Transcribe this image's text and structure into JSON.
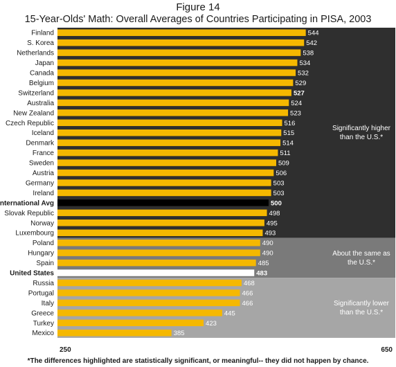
{
  "figure_label": "Figure 14",
  "title": "15-Year-Olds' Math: Overall Averages of Countries Participating in PISA, 2003",
  "footnote": "*The differences highlighted are statistically significant, or meaningful-- they did not happen by chance.",
  "colors": {
    "bar": "#f5b800",
    "highlight_international": "#000000",
    "highlight_us": "#ffffff",
    "panel_higher": "#2f2f2f",
    "panel_same": "#7a7a7a",
    "panel_lower": "#a6a6a6"
  },
  "chart_data": {
    "type": "bar",
    "orientation": "horizontal",
    "xlim": [
      250,
      650
    ],
    "x_ticks": [
      "250",
      "650"
    ],
    "grid": false,
    "categories": [
      "Finland",
      "S. Korea",
      "Netherlands",
      "Japan",
      "Canada",
      "Belgium",
      "Switzerland",
      "Australia",
      "New Zealand",
      "Czech Republic",
      "Iceland",
      "Denmark",
      "France",
      "Sweden",
      "Austria",
      "Germany",
      "Ireland",
      "International Avg",
      "Slovak Republic",
      "Norway",
      "Luxembourg",
      "Poland",
      "Hungary",
      "Spain",
      "United States",
      "Russia",
      "Portugal",
      "Italy",
      "Greece",
      "Turkey",
      "Mexico"
    ],
    "values": [
      544,
      542,
      538,
      534,
      532,
      529,
      527,
      524,
      523,
      516,
      515,
      514,
      511,
      509,
      506,
      503,
      503,
      500,
      498,
      495,
      493,
      490,
      490,
      485,
      483,
      468,
      466,
      466,
      445,
      423,
      385
    ],
    "value_labels": [
      "544",
      "542",
      "538",
      "534",
      "532",
      "529",
      "527",
      "524",
      "523",
      "516",
      "515",
      "514",
      "511",
      "509",
      "506",
      "503",
      "503",
      "500",
      "498",
      "495",
      "493",
      "490",
      "490",
      "485",
      "483",
      "468",
      "466",
      "466",
      "445",
      "423",
      "385"
    ],
    "bold_categories": [
      "International Avg",
      "United States"
    ],
    "bold_values": [
      "Switzerland",
      "International Avg",
      "United States"
    ],
    "groups": [
      {
        "label": "Significantly higher than the U.S.*",
        "lines": [
          "Significantly higher",
          "than the U.S.*"
        ],
        "start": 0,
        "end": 20,
        "color": "#2f2f2f"
      },
      {
        "label": "About the same as the U.S.*",
        "lines": [
          "About the same as",
          "the U.S.*"
        ],
        "start": 21,
        "end": 24,
        "color": "#7a7a7a"
      },
      {
        "label": "Significantly lower than the U.S.*",
        "lines": [
          "Significantly lower",
          "than the U.S.*"
        ],
        "start": 25,
        "end": 30,
        "color": "#a6a6a6"
      }
    ],
    "highlight_bars": {
      "International Avg": "#000000",
      "United States": "#ffffff"
    }
  }
}
